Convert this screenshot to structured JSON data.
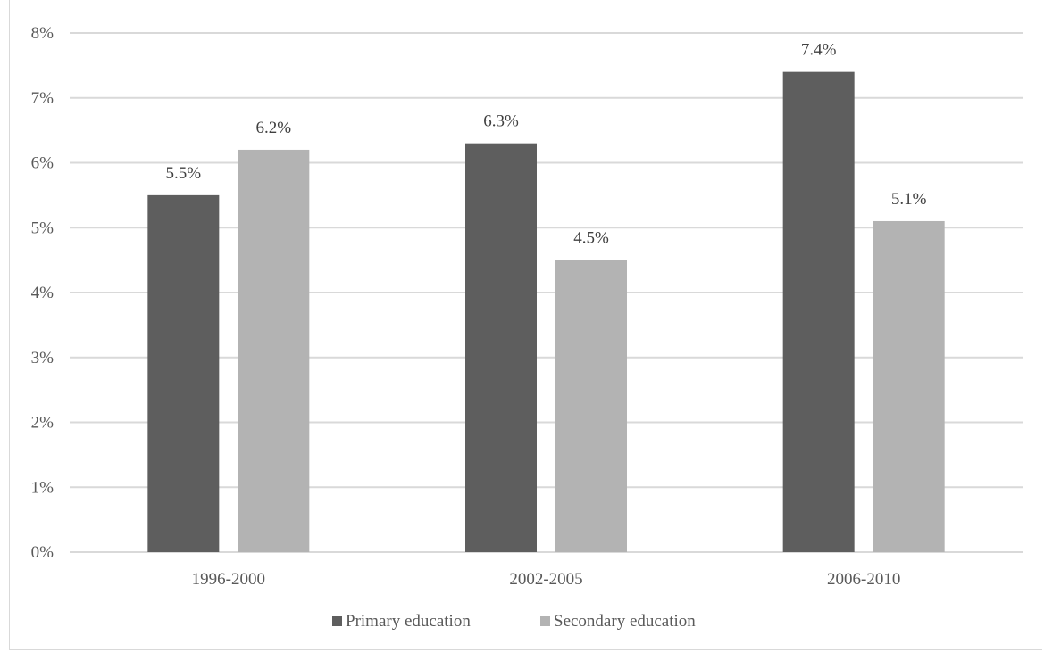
{
  "chart_data": {
    "type": "bar",
    "title": "",
    "categories": [
      "1996-2000",
      "2002-2005",
      "2006-2010"
    ],
    "series": [
      {
        "name": "Primary education",
        "color": "#5e5e5e",
        "values": [
          5.5,
          6.3,
          7.4
        ],
        "labels": [
          "5.5%",
          "6.3%",
          "7.4%"
        ]
      },
      {
        "name": "Secondary education",
        "color": "#b3b3b3",
        "values": [
          6.2,
          4.5,
          5.1
        ],
        "labels": [
          "6.2%",
          "4.5%",
          "5.1%"
        ]
      }
    ],
    "ylim": [
      0,
      8
    ],
    "yticks": [
      "0%",
      "1%",
      "2%",
      "3%",
      "4%",
      "5%",
      "6%",
      "7%",
      "8%"
    ],
    "grid": true,
    "legend_position": "bottom"
  }
}
